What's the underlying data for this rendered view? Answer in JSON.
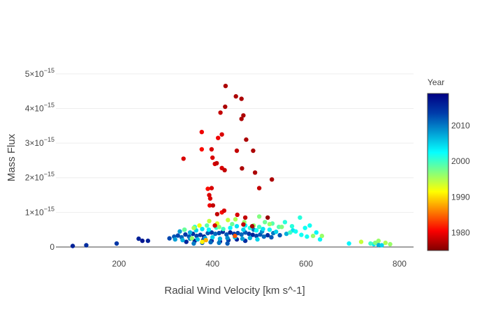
{
  "chart_data": {
    "type": "scatter",
    "title": "",
    "xlabel": "Radial Wind Velocity [km s^-1]",
    "ylabel": "Mass Flux",
    "xlim": [
      65,
      830
    ],
    "ylim": [
      0,
      5.4
    ],
    "x_ticks": [
      {
        "value": 200,
        "label": "200"
      },
      {
        "value": 400,
        "label": "400"
      },
      {
        "value": 600,
        "label": "600"
      },
      {
        "value": 800,
        "label": "800"
      }
    ],
    "y_ticks": [
      {
        "value": 0,
        "label": "0",
        "exp": ""
      },
      {
        "value": 1,
        "label": "1×10",
        "exp": "−15"
      },
      {
        "value": 2,
        "label": "2×10",
        "exp": "−15"
      },
      {
        "value": 3,
        "label": "3×10",
        "exp": "−15"
      },
      {
        "value": 4,
        "label": "4×10",
        "exp": "−15"
      },
      {
        "value": 5,
        "label": "5×10",
        "exp": "−15"
      }
    ],
    "y_scale_note": "values in units of 1e-15",
    "grid": "horizontal",
    "colorbar": {
      "title": "Year",
      "range": [
        1975,
        2019
      ],
      "ticks": [
        {
          "value": 2010,
          "label": "2010"
        },
        {
          "value": 2000,
          "label": "2000"
        },
        {
          "value": 1990,
          "label": "1990"
        },
        {
          "value": 1980,
          "label": "1980"
        }
      ],
      "colorscale": [
        "#000083",
        "#003caa",
        "#05ffff",
        "#ffff00",
        "#fa0000",
        "#800000"
      ]
    },
    "points": [
      [
        428,
        4.65,
        1977
      ],
      [
        450,
        4.35,
        1977
      ],
      [
        462,
        4.28,
        1977
      ],
      [
        427,
        4.05,
        1977
      ],
      [
        466,
        3.8,
        1977
      ],
      [
        417,
        3.88,
        1978
      ],
      [
        462,
        3.7,
        1977
      ],
      [
        377,
        3.32,
        1980
      ],
      [
        420,
        3.25,
        1979
      ],
      [
        412,
        3.15,
        1980
      ],
      [
        472,
        3.1,
        1977
      ],
      [
        452,
        2.78,
        1978
      ],
      [
        338,
        2.55,
        1979
      ],
      [
        377,
        2.82,
        1981
      ],
      [
        398,
        2.82,
        1979
      ],
      [
        487,
        2.78,
        1977
      ],
      [
        400,
        2.58,
        1979
      ],
      [
        409,
        2.42,
        1978
      ],
      [
        405,
        2.4,
        1979
      ],
      [
        420,
        2.28,
        1979
      ],
      [
        426,
        2.22,
        1978
      ],
      [
        463,
        2.27,
        1977
      ],
      [
        491,
        2.15,
        1977
      ],
      [
        527,
        1.95,
        1977
      ],
      [
        500,
        1.7,
        1978
      ],
      [
        390,
        1.68,
        1981
      ],
      [
        398,
        1.7,
        1979
      ],
      [
        393,
        1.5,
        1979
      ],
      [
        395,
        1.4,
        1979
      ],
      [
        401,
        1.2,
        1978
      ],
      [
        425,
        1.05,
        1979
      ],
      [
        394,
        1.2,
        1980
      ],
      [
        410,
        0.95,
        1978
      ],
      [
        453,
        0.93,
        1979
      ],
      [
        470,
        0.85,
        1978
      ],
      [
        518,
        0.85,
        1976
      ],
      [
        420,
        1.0,
        1981
      ],
      [
        360,
        0.55,
        1995
      ],
      [
        372,
        0.62,
        1992
      ],
      [
        393,
        0.75,
        1994
      ],
      [
        410,
        0.68,
        1993
      ],
      [
        433,
        0.78,
        1994
      ],
      [
        449,
        0.8,
        1995
      ],
      [
        468,
        0.72,
        1996
      ],
      [
        488,
        0.62,
        1996
      ],
      [
        500,
        0.88,
        1997
      ],
      [
        512,
        0.72,
        1998
      ],
      [
        528,
        0.68,
        1999
      ],
      [
        542,
        0.58,
        1999
      ],
      [
        555,
        0.72,
        2001
      ],
      [
        570,
        0.6,
        2001
      ],
      [
        578,
        0.45,
        2002
      ],
      [
        587,
        0.85,
        2001
      ],
      [
        598,
        0.55,
        2002
      ],
      [
        608,
        0.62,
        2002
      ],
      [
        622,
        0.42,
        2003
      ],
      [
        590,
        0.35,
        2002
      ],
      [
        602,
        0.3,
        2002
      ],
      [
        615,
        0.32,
        1996
      ],
      [
        630,
        0.22,
        2003
      ],
      [
        330,
        0.45,
        2008
      ],
      [
        340,
        0.5,
        2002
      ],
      [
        352,
        0.42,
        2007
      ],
      [
        365,
        0.48,
        2005
      ],
      [
        378,
        0.52,
        2004
      ],
      [
        392,
        0.5,
        2003
      ],
      [
        408,
        0.56,
        2001
      ],
      [
        423,
        0.52,
        2000
      ],
      [
        438,
        0.55,
        2003
      ],
      [
        452,
        0.6,
        2004
      ],
      [
        466,
        0.5,
        2005
      ],
      [
        480,
        0.55,
        2001
      ],
      [
        494,
        0.48,
        2002
      ],
      [
        508,
        0.52,
        2004
      ],
      [
        522,
        0.5,
        2003
      ],
      [
        536,
        0.44,
        2005
      ],
      [
        318,
        0.3,
        2012
      ],
      [
        326,
        0.33,
        2013
      ],
      [
        334,
        0.28,
        2011
      ],
      [
        342,
        0.36,
        2014
      ],
      [
        350,
        0.3,
        2012
      ],
      [
        358,
        0.38,
        2015
      ],
      [
        366,
        0.32,
        2013
      ],
      [
        374,
        0.35,
        2014
      ],
      [
        382,
        0.3,
        2016
      ],
      [
        390,
        0.4,
        2012
      ],
      [
        398,
        0.42,
        2014
      ],
      [
        406,
        0.38,
        2011
      ],
      [
        414,
        0.4,
        2013
      ],
      [
        422,
        0.44,
        2015
      ],
      [
        430,
        0.36,
        2012
      ],
      [
        438,
        0.42,
        2016
      ],
      [
        446,
        0.38,
        2014
      ],
      [
        454,
        0.4,
        2013
      ],
      [
        462,
        0.36,
        2011
      ],
      [
        470,
        0.42,
        2012
      ],
      [
        478,
        0.38,
        2014
      ],
      [
        486,
        0.35,
        2016
      ],
      [
        494,
        0.32,
        2013
      ],
      [
        502,
        0.36,
        2012
      ],
      [
        510,
        0.3,
        2011
      ],
      [
        518,
        0.34,
        2015
      ],
      [
        526,
        0.28,
        2012
      ],
      [
        320,
        0.22,
        2008
      ],
      [
        336,
        0.2,
        2007
      ],
      [
        352,
        0.24,
        2009
      ],
      [
        368,
        0.22,
        2006
      ],
      [
        384,
        0.26,
        2008
      ],
      [
        400,
        0.28,
        2005
      ],
      [
        416,
        0.24,
        2007
      ],
      [
        432,
        0.26,
        2009
      ],
      [
        448,
        0.28,
        2006
      ],
      [
        464,
        0.24,
        2008
      ],
      [
        480,
        0.26,
        2007
      ],
      [
        496,
        0.22,
        2005
      ],
      [
        344,
        0.15,
        2016
      ],
      [
        362,
        0.18,
        2017
      ],
      [
        380,
        0.2,
        2015
      ],
      [
        398,
        0.18,
        2016
      ],
      [
        416,
        0.16,
        2017
      ],
      [
        434,
        0.2,
        2014
      ],
      [
        452,
        0.22,
        2016
      ],
      [
        470,
        0.18,
        2015
      ],
      [
        360,
        0.1,
        2010
      ],
      [
        378,
        0.12,
        2012
      ],
      [
        396,
        0.14,
        2011
      ],
      [
        414,
        0.12,
        2010
      ],
      [
        432,
        0.1,
        2012
      ],
      [
        378,
        0.15,
        1991
      ],
      [
        386,
        0.2,
        1988
      ],
      [
        356,
        0.25,
        1996
      ],
      [
        405,
        0.62,
        1979
      ],
      [
        466,
        0.65,
        1978
      ],
      [
        485,
        0.6,
        1977
      ],
      [
        448,
        0.32,
        1984
      ],
      [
        101,
        0.03,
        2016
      ],
      [
        130,
        0.05,
        2015
      ],
      [
        195,
        0.1,
        2014
      ],
      [
        242,
        0.24,
        2016
      ],
      [
        250,
        0.18,
        2017
      ],
      [
        262,
        0.18,
        2016
      ],
      [
        308,
        0.25,
        2013
      ],
      [
        692,
        0.1,
        2003
      ],
      [
        718,
        0.15,
        1994
      ],
      [
        738,
        0.1,
        2000
      ],
      [
        748,
        0.12,
        1997
      ],
      [
        755,
        0.18,
        1996
      ],
      [
        762,
        0.05,
        2005
      ],
      [
        770,
        0.12,
        1995
      ],
      [
        780,
        0.08,
        1996
      ],
      [
        755,
        0.06,
        2007
      ],
      [
        745,
        0.08,
        2004
      ],
      [
        634,
        0.32,
        1996
      ],
      [
        566,
        0.42,
        2000
      ],
      [
        548,
        0.58,
        1997
      ],
      [
        522,
        0.66,
        1996
      ],
      [
        500,
        0.58,
        2000
      ],
      [
        470,
        0.62,
        2003
      ],
      [
        442,
        0.66,
        1998
      ],
      [
        414,
        0.58,
        1997
      ],
      [
        388,
        0.62,
        1999
      ],
      [
        362,
        0.58,
        2001
      ],
      [
        340,
        0.5,
        1998
      ],
      [
        530,
        0.4,
        2010
      ],
      [
        544,
        0.34,
        2012
      ],
      [
        558,
        0.38,
        2007
      ],
      [
        572,
        0.48,
        2004
      ],
      [
        506,
        0.45,
        2009
      ],
      [
        488,
        0.5,
        2010
      ]
    ]
  }
}
